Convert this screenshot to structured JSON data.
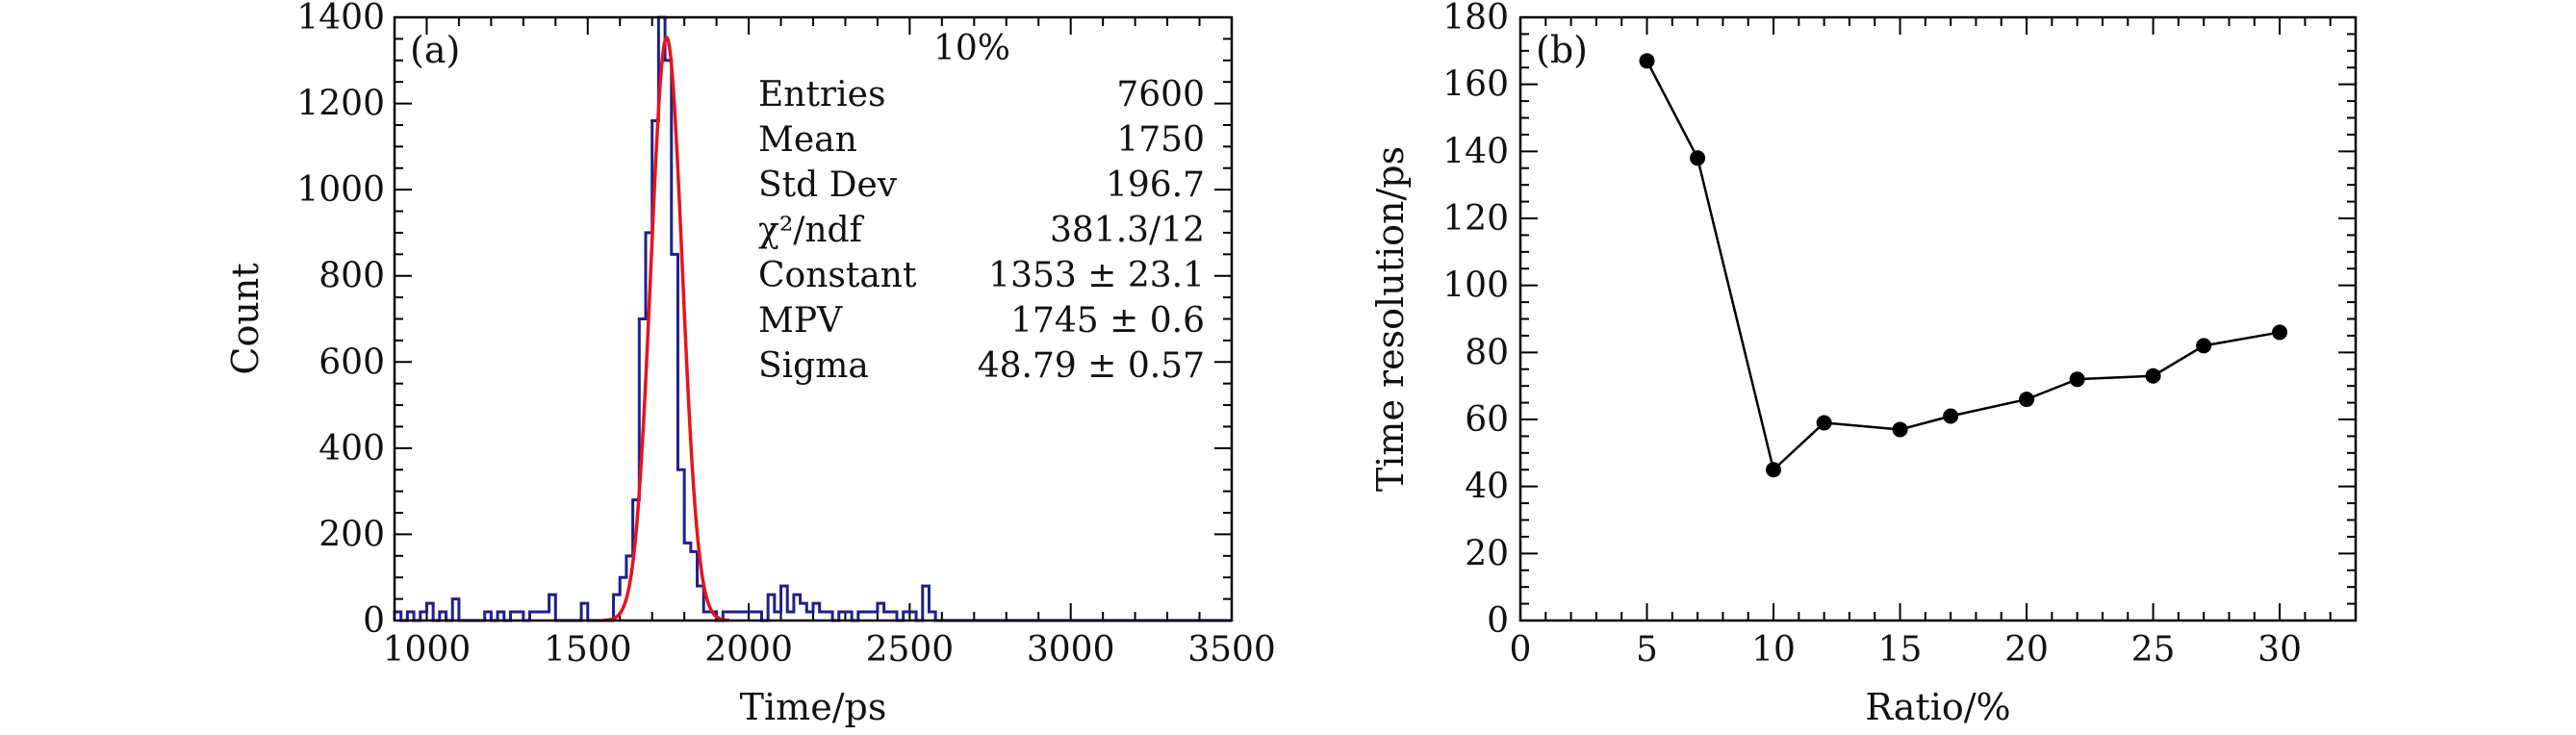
{
  "chart_data": [
    {
      "panel_label": "(a)",
      "type": "bar",
      "subtype": "histogram-with-gaussian-fit",
      "title": "",
      "xlabel": "Time/ps",
      "ylabel": "Count",
      "xlim": [
        900,
        3500
      ],
      "ylim": [
        0,
        1400
      ],
      "xticks": [
        1000,
        1500,
        2000,
        2500,
        3000,
        3500
      ],
      "yticks": [
        0,
        200,
        400,
        600,
        800,
        1000,
        1200,
        1400
      ],
      "bin_width": 20,
      "histogram_color": "#1f1f8f",
      "fit_color": "#e8131b",
      "bins": [
        [
          900,
          20
        ],
        [
          920,
          0
        ],
        [
          940,
          20
        ],
        [
          960,
          0
        ],
        [
          980,
          20
        ],
        [
          1000,
          40
        ],
        [
          1020,
          0
        ],
        [
          1040,
          20
        ],
        [
          1060,
          0
        ],
        [
          1080,
          50
        ],
        [
          1100,
          0
        ],
        [
          1120,
          0
        ],
        [
          1140,
          0
        ],
        [
          1160,
          0
        ],
        [
          1180,
          20
        ],
        [
          1200,
          0
        ],
        [
          1220,
          20
        ],
        [
          1240,
          0
        ],
        [
          1260,
          20
        ],
        [
          1280,
          20
        ],
        [
          1300,
          0
        ],
        [
          1320,
          20
        ],
        [
          1340,
          20
        ],
        [
          1360,
          20
        ],
        [
          1380,
          60
        ],
        [
          1400,
          0
        ],
        [
          1420,
          0
        ],
        [
          1440,
          0
        ],
        [
          1460,
          0
        ],
        [
          1480,
          40
        ],
        [
          1500,
          0
        ],
        [
          1520,
          0
        ],
        [
          1540,
          0
        ],
        [
          1560,
          0
        ],
        [
          1580,
          60
        ],
        [
          1600,
          100
        ],
        [
          1620,
          150
        ],
        [
          1640,
          280
        ],
        [
          1660,
          700
        ],
        [
          1680,
          900
        ],
        [
          1700,
          1160
        ],
        [
          1720,
          1400
        ],
        [
          1740,
          1300
        ],
        [
          1760,
          850
        ],
        [
          1780,
          350
        ],
        [
          1800,
          180
        ],
        [
          1820,
          160
        ],
        [
          1840,
          80
        ],
        [
          1860,
          20
        ],
        [
          1880,
          20
        ],
        [
          1900,
          0
        ],
        [
          1920,
          20
        ],
        [
          1940,
          20
        ],
        [
          1960,
          20
        ],
        [
          1980,
          20
        ],
        [
          2000,
          20
        ],
        [
          2020,
          20
        ],
        [
          2040,
          0
        ],
        [
          2060,
          60
        ],
        [
          2080,
          20
        ],
        [
          2100,
          80
        ],
        [
          2120,
          20
        ],
        [
          2140,
          60
        ],
        [
          2160,
          40
        ],
        [
          2180,
          20
        ],
        [
          2200,
          40
        ],
        [
          2220,
          20
        ],
        [
          2240,
          20
        ],
        [
          2260,
          0
        ],
        [
          2280,
          20
        ],
        [
          2300,
          20
        ],
        [
          2320,
          0
        ],
        [
          2340,
          20
        ],
        [
          2360,
          20
        ],
        [
          2380,
          20
        ],
        [
          2400,
          40
        ],
        [
          2420,
          20
        ],
        [
          2440,
          20
        ],
        [
          2460,
          0
        ],
        [
          2480,
          20
        ],
        [
          2500,
          20
        ],
        [
          2520,
          0
        ],
        [
          2540,
          80
        ],
        [
          2560,
          20
        ],
        [
          2580,
          0
        ]
      ],
      "fit": {
        "constant": 1353,
        "mpv": 1745,
        "sigma": 48.79
      },
      "stats": {
        "header": "10%",
        "rows": [
          {
            "label": "Entries",
            "value": "7600"
          },
          {
            "label": "Mean",
            "value": "1750"
          },
          {
            "label": "Std Dev",
            "value": "196.7"
          },
          {
            "label": "χ²/ndf",
            "value": "381.3/12"
          },
          {
            "label": "Constant",
            "value": "1353 ± 23.1"
          },
          {
            "label": "MPV",
            "value": "1745 ± 0.6"
          },
          {
            "label": "Sigma",
            "value": "48.79 ± 0.57"
          }
        ]
      }
    },
    {
      "panel_label": "(b)",
      "type": "line",
      "title": "",
      "xlabel": "Ratio/%",
      "ylabel": "Time resolution/ps",
      "xlim": [
        0,
        33
      ],
      "ylim": [
        0,
        180
      ],
      "xticks": [
        0,
        5,
        10,
        15,
        20,
        25,
        30
      ],
      "yticks": [
        0,
        20,
        40,
        60,
        80,
        100,
        120,
        140,
        160,
        180
      ],
      "line_color": "#000000",
      "x": [
        5,
        7,
        10,
        12,
        15,
        17,
        20,
        22,
        25,
        27,
        30
      ],
      "y": [
        167,
        138,
        45,
        59,
        57,
        61,
        66,
        72,
        73,
        82,
        86
      ]
    }
  ]
}
